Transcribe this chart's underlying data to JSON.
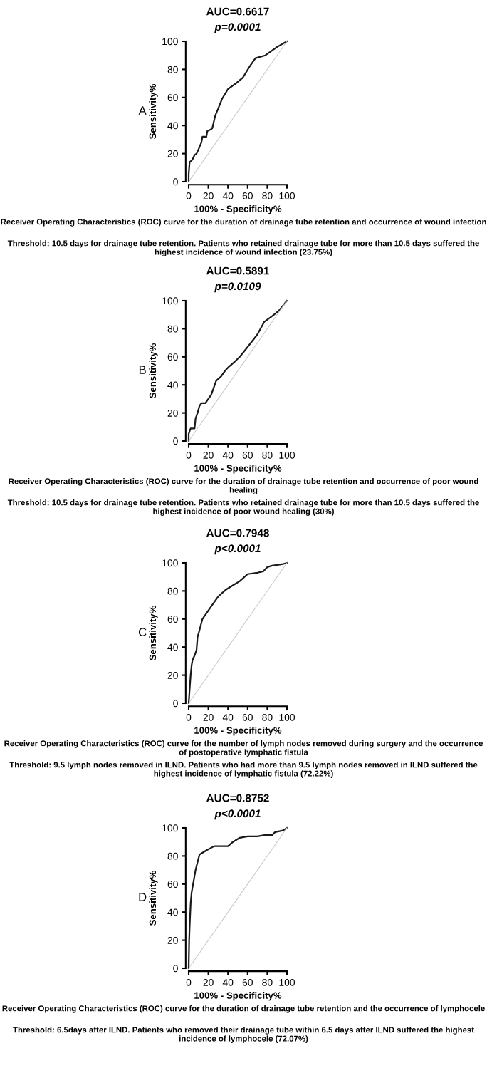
{
  "chart_data": [
    {
      "type": "line",
      "title": "AUC=0.6617",
      "subtitle": "p=0.0001",
      "xlabel": "100% - Specificity%",
      "ylabel": "Sensitivity%",
      "xlim": [
        0,
        100
      ],
      "ylim": [
        0,
        100
      ],
      "xticks": [
        0,
        20,
        40,
        60,
        80,
        100
      ],
      "yticks": [
        0,
        20,
        40,
        60,
        80,
        100
      ],
      "grid": false,
      "legend": false,
      "series": [
        {
          "color": "#1a1a1a",
          "x": [
            0,
            0,
            0.5,
            1,
            3,
            4,
            6,
            8,
            10,
            13,
            14,
            18,
            19,
            22,
            24,
            27,
            30,
            34,
            40,
            48,
            55,
            62,
            68,
            78,
            90,
            100
          ],
          "values": [
            0,
            5,
            10,
            14,
            15,
            16,
            19,
            20,
            23,
            28,
            32,
            32,
            36,
            37,
            38,
            47,
            52,
            59,
            66,
            70,
            74,
            82,
            88,
            90,
            96,
            100
          ]
        },
        {
          "color": "#c8c8c8",
          "x": [
            0,
            100
          ],
          "values": [
            0,
            100
          ]
        }
      ],
      "annotations": [
        "A",
        "Receiver Operating Characteristics (ROC) curve for the duration of drainage tube retention and occurrence of wound infection",
        "Threshold: 10.5 days for drainage tube retention. Patients who retained drainage tube for more than 10.5 days suffered the highest incidence of wound infection (23.75%)"
      ]
    },
    {
      "type": "line",
      "title": "AUC=0.5891",
      "subtitle": "p=0.0109",
      "xlabel": "100% - Specificity%",
      "ylabel": "Sensitivity%",
      "xlim": [
        0,
        100
      ],
      "ylim": [
        0,
        100
      ],
      "xticks": [
        0,
        20,
        40,
        60,
        80,
        100
      ],
      "yticks": [
        0,
        20,
        40,
        60,
        80,
        100
      ],
      "grid": false,
      "legend": false,
      "series": [
        {
          "color": "#1a1a1a",
          "x": [
            0,
            0,
            1,
            2,
            6,
            7,
            9,
            11,
            13,
            17,
            20,
            23,
            25,
            28,
            33,
            37,
            41,
            46,
            52,
            60,
            70,
            77,
            85,
            92,
            100
          ],
          "values": [
            0,
            5,
            7,
            9,
            9,
            16,
            20,
            25,
            27,
            27,
            30,
            33,
            37,
            43,
            46,
            50,
            53,
            56,
            60,
            67,
            76,
            85,
            89,
            93,
            100
          ]
        },
        {
          "color": "#c8c8c8",
          "x": [
            0,
            100
          ],
          "values": [
            0,
            100
          ]
        }
      ],
      "annotations": [
        "B",
        "Receiver Operating Characteristics (ROC) curve for the duration of drainage tube retention and occurrence of poor wound healing",
        "Threshold: 10.5 days for drainage tube retention. Patients who retained drainage tube for more than 10.5 days suffered the highest incidence of poor wound healing (30%)"
      ]
    },
    {
      "type": "line",
      "title": "AUC=0.7948",
      "subtitle": "p<0.0001",
      "xlabel": "100% - Specificity%",
      "ylabel": "Sensitivity%",
      "xlim": [
        0,
        100
      ],
      "ylim": [
        0,
        100
      ],
      "xticks": [
        0,
        20,
        40,
        60,
        80,
        100
      ],
      "yticks": [
        0,
        20,
        40,
        60,
        80,
        100
      ],
      "grid": false,
      "legend": false,
      "series": [
        {
          "color": "#1a1a1a",
          "x": [
            0,
            1,
            2,
            3,
            4,
            6,
            8,
            9,
            11,
            14,
            20,
            26,
            30,
            38,
            45,
            52,
            60,
            70,
            76,
            80,
            85,
            95,
            100
          ],
          "values": [
            0,
            10,
            20,
            27,
            31,
            34,
            38,
            47,
            52,
            60,
            66,
            72,
            76,
            81,
            84,
            87,
            92,
            93,
            94,
            97,
            98,
            99,
            100
          ]
        },
        {
          "color": "#c8c8c8",
          "x": [
            0,
            100
          ],
          "values": [
            0,
            100
          ]
        }
      ],
      "annotations": [
        "C",
        "Receiver Operating Characteristics (ROC) curve for the number of lymph nodes removed during surgery and the occurrence of postoperative lymphatic fistula",
        "Threshold: 9.5 lymph nodes removed in ILND. Patients who had more than 9.5 lymph nodes removed in ILND suffered the highest incidence of lymphatic fistula (72.22%)"
      ]
    },
    {
      "type": "line",
      "title": "AUC=0.8752",
      "subtitle": "p<0.0001",
      "xlabel": "100% - Specificity%",
      "ylabel": "Sensitivity%",
      "xlim": [
        0,
        100
      ],
      "ylim": [
        0,
        100
      ],
      "xticks": [
        0,
        20,
        40,
        60,
        80,
        100
      ],
      "yticks": [
        0,
        20,
        40,
        60,
        80,
        100
      ],
      "grid": false,
      "legend": false,
      "series": [
        {
          "color": "#1a1a1a",
          "x": [
            0,
            0.5,
            1,
            2,
            3,
            5,
            7,
            11,
            18,
            26,
            40,
            45,
            52,
            60,
            70,
            78,
            85,
            88,
            95,
            98,
            100
          ],
          "values": [
            0,
            20,
            30,
            46,
            54,
            62,
            70,
            81,
            84,
            87,
            87,
            90,
            93,
            94,
            94,
            95,
            95,
            97,
            98,
            99,
            100
          ]
        },
        {
          "color": "#c8c8c8",
          "x": [
            0,
            100
          ],
          "values": [
            0,
            100
          ]
        }
      ],
      "annotations": [
        "D",
        "Receiver Operating Characteristics (ROC) curve for the duration of drainage tube retention and the occurrence of lymphocele",
        "Threshold: 6.5days after ILND. Patients who removed their drainage tube within 6.5 days after ILND suffered the highest incidence of lymphocele (72.07%)"
      ]
    }
  ]
}
